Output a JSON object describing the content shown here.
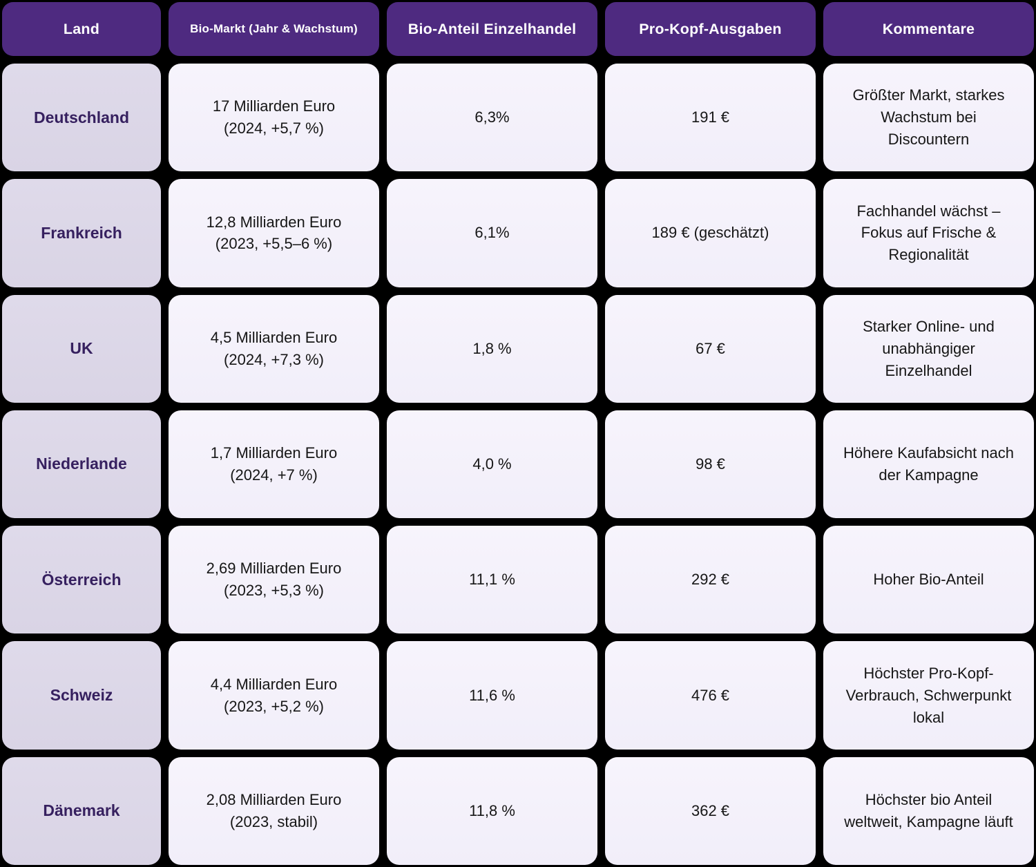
{
  "accent_colors": {
    "background": "#000000",
    "header_bg": "#4e2a80",
    "header_text": "#ffffff",
    "land_cell_bg": "#dcd7e7",
    "data_cell_bg": "#f4f1fa",
    "land_text": "#36205f",
    "data_text": "#161616"
  },
  "chart_data": {
    "type": "table",
    "columns": [
      "Land",
      "Bio-Markt (Jahr & Wachstum)",
      "Bio-Anteil Einzelhandel",
      "Pro-Kopf-Ausgaben",
      "Kommentare"
    ],
    "rows": [
      {
        "land": "Deutschland",
        "market_value": "17 Milliarden Euro",
        "market_detail": "(2024, +5,7 %)",
        "share": "6,3%",
        "spend": "191 €",
        "comment": "Größter Markt, starkes Wachstum bei Discountern"
      },
      {
        "land": "Frankreich",
        "market_value": "12,8 Milliarden Euro",
        "market_detail": "(2023, +5,5–6 %)",
        "share": "6,1%",
        "spend": "189 € (geschätzt)",
        "comment": "Fachhandel wächst – Fokus auf Frische & Regionalität"
      },
      {
        "land": "UK",
        "market_value": "4,5 Milliarden Euro",
        "market_detail": "(2024, +7,3 %)",
        "share": "1,8 %",
        "spend": "67 €",
        "comment": "Starker Online- und unabhängiger Einzelhandel"
      },
      {
        "land": "Niederlande",
        "market_value": "1,7 Milliarden Euro",
        "market_detail": "(2024, +7 %)",
        "share": "4,0 %",
        "spend": "98 €",
        "comment": "Höhere Kaufabsicht nach der Kampagne"
      },
      {
        "land": "Österreich",
        "market_value": "2,69 Milliarden Euro",
        "market_detail": "(2023, +5,3 %)",
        "share": "11,1 %",
        "spend": "292 €",
        "comment": "Hoher Bio-Anteil"
      },
      {
        "land": "Schweiz",
        "market_value": "4,4 Milliarden Euro",
        "market_detail": "(2023, +5,2 %)",
        "share": "11,6 %",
        "spend": "476 €",
        "comment": "Höchster Pro-Kopf-Verbrauch, Schwerpunkt lokal"
      },
      {
        "land": "Dänemark",
        "market_value": "2,08 Milliarden Euro",
        "market_detail": "(2023, stabil)",
        "share": "11,8 %",
        "spend": "362 €",
        "comment": "Höchster bio Anteil weltweit, Kampagne läuft"
      }
    ]
  }
}
